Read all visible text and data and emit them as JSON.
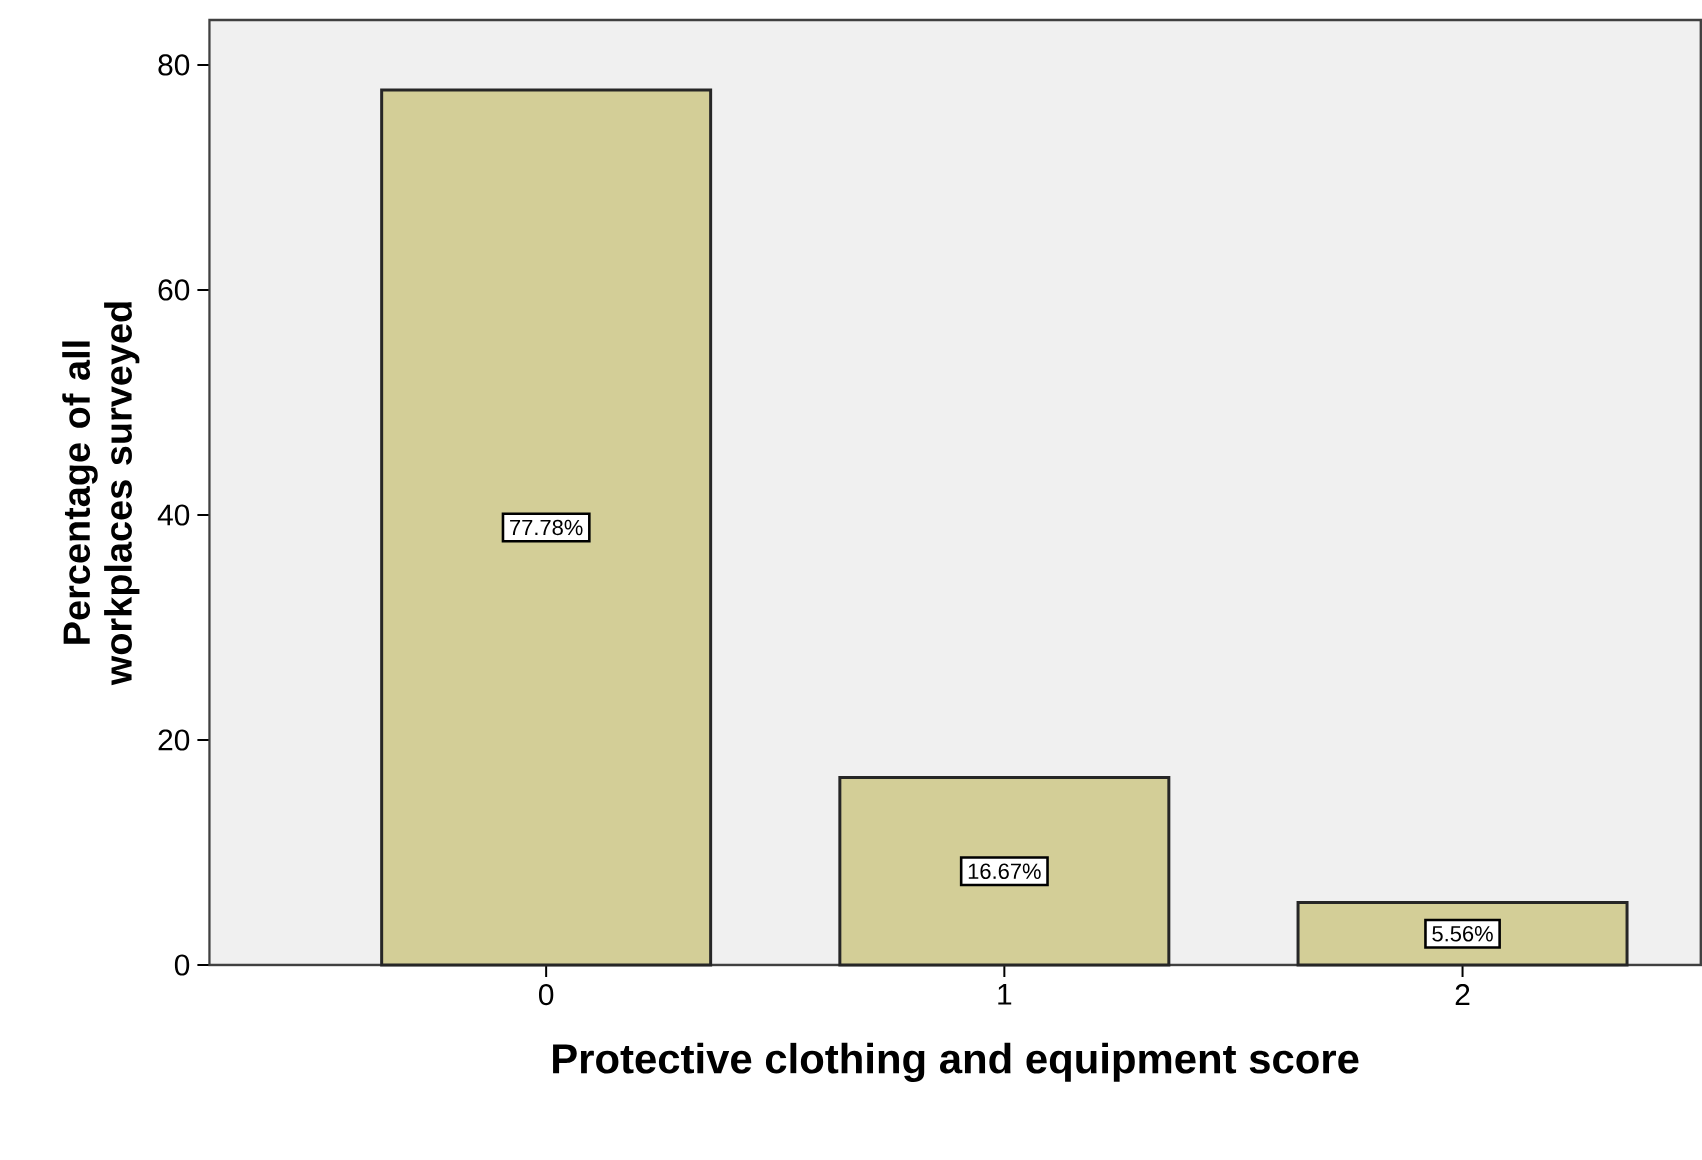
{
  "chart_data": {
    "type": "bar",
    "xlabel": "Protective clothing and equipment score",
    "ylabel": "Percentage of all workplaces surveyed",
    "categories": [
      "0",
      "1",
      "2"
    ],
    "values": [
      77.78,
      16.67,
      5.56
    ],
    "value_labels": [
      "77.78%",
      "16.67%",
      "5.56%"
    ],
    "color": "#d3ce97",
    "ylim": [
      0,
      84
    ],
    "yticks": [
      0,
      20,
      40,
      60,
      80
    ],
    "grid": false
  }
}
